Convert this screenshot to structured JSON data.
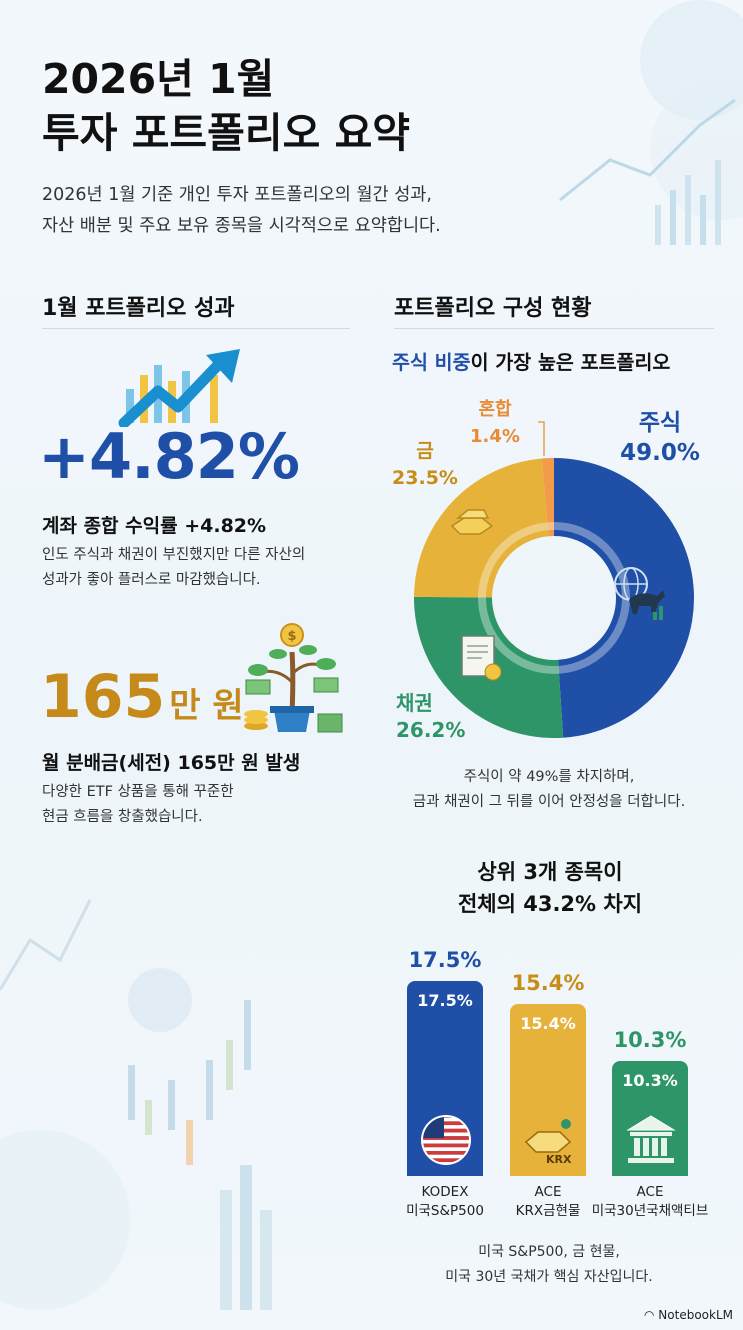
{
  "header": {
    "title_line1": "2026년 1월",
    "title_line2": "투자 포트폴리오 요약",
    "subtitle_line1": "2026년 1월 기준 개인 투자 포트폴리오의 월간 성과,",
    "subtitle_line2": "자산 배분 및 주요 보유 종목을 시각적으로 요약합니다."
  },
  "performance": {
    "section_title": "1월 포트폴리오 성과",
    "return_value": "+4.82%",
    "return_label": "계좌 종합 수익률 +4.82%",
    "return_desc_line1": "인도 주식과 채권이 부진했지만 다른 자산의",
    "return_desc_line2": "성과가 좋아 플러스로 마감했습니다.",
    "dist_number": "165",
    "dist_unit": "만 원",
    "dist_label": "월 분배금(세전) 165만 원 발생",
    "dist_desc_line1": "다양한 ETF 상품을 통해 꾸준한",
    "dist_desc_line2": "현금 흐름을 창출했습니다."
  },
  "composition": {
    "section_title": "포트폴리오 구성 현황",
    "headline_highlight": "주식 비중",
    "headline_rest": "이 가장 높은 포트폴리오",
    "note_line1": "주식이 약 49%를 차지하며,",
    "note_line2": "금과 채권이 그 뒤를 이어 안정성을 더합니다.",
    "labels": {
      "stock_name": "주식",
      "stock_pct": "49.0%",
      "bond_name": "채권",
      "bond_pct": "26.2%",
      "gold_name": "금",
      "gold_pct": "23.5%",
      "mixed_name": "혼합",
      "mixed_pct": "1.4%"
    }
  },
  "top3": {
    "title_line1": "상위 3개 종목이",
    "title_line2": "전체의 43.2% 차지",
    "note_line1": "미국 S&P500, 금 현물,",
    "note_line2": "미국 30년 국채가 핵심 자산입니다.",
    "krx_tag": "KRX",
    "items": [
      {
        "top": "17.5%",
        "inner": "17.5%",
        "name1": "KODEX",
        "name2": "미국S&P500"
      },
      {
        "top": "15.4%",
        "inner": "15.4%",
        "name1": "ACE",
        "name2": "KRX금현물"
      },
      {
        "top": "10.3%",
        "inner": "10.3%",
        "name1": "ACE",
        "name2": "미국30년국채액티브"
      }
    ]
  },
  "chart_data": [
    {
      "type": "pie",
      "title": "포트폴리오 구성 현황",
      "categories": [
        "주식",
        "채권",
        "금",
        "혼합"
      ],
      "values": [
        49.0,
        26.2,
        23.5,
        1.4
      ],
      "colors": [
        "#1f4fa6",
        "#2e9568",
        "#e6b23a",
        "#f29b4b"
      ]
    },
    {
      "type": "bar",
      "title": "상위 3개 종목이 전체의 43.2% 차지",
      "categories": [
        "KODEX 미국S&P500",
        "ACE KRX금현물",
        "ACE 미국30년국채액티브"
      ],
      "values": [
        17.5,
        15.4,
        10.3
      ],
      "colors": [
        "#1f4fa6",
        "#e6b23a",
        "#2e9568"
      ],
      "ylim": [
        0,
        17.5
      ]
    }
  ],
  "brand": "NotebookLM"
}
